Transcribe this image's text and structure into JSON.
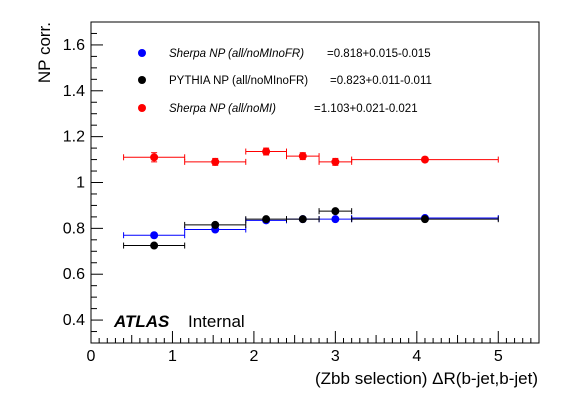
{
  "chart_data": {
    "type": "scatter",
    "xlabel": "(Zbb selection) ΔR(b-jet,b-jet)",
    "ylabel": "NP corr.",
    "xlim": [
      0,
      5.5
    ],
    "ylim": [
      0.3,
      1.7
    ],
    "x_ticks": [
      "0",
      "1",
      "2",
      "3",
      "4",
      "5"
    ],
    "y_ticks": [
      "0.4",
      "0.6",
      "0.8",
      "1",
      "1.2",
      "1.4",
      "1.6"
    ],
    "grid": false,
    "legend_placement": "top-left",
    "series": [
      {
        "name": "Sherpa NP (all/noMInoFR)",
        "legend_text": "=0.818+0.015-0.015",
        "italic": true,
        "color": "#0000ff",
        "points": [
          {
            "x": 0.775,
            "y": 0.77,
            "xlo": 0.4,
            "xhi": 1.15,
            "yerr": 0.008
          },
          {
            "x": 1.525,
            "y": 0.795,
            "xlo": 1.15,
            "xhi": 1.9,
            "yerr": 0.008
          },
          {
            "x": 2.15,
            "y": 0.835,
            "xlo": 1.9,
            "xhi": 2.4,
            "yerr": 0.008
          },
          {
            "x": 2.6,
            "y": 0.84,
            "xlo": 2.4,
            "xhi": 2.8,
            "yerr": 0.008
          },
          {
            "x": 3.0,
            "y": 0.84,
            "xlo": 2.8,
            "xhi": 3.2,
            "yerr": 0.008
          },
          {
            "x": 4.1,
            "y": 0.845,
            "xlo": 3.2,
            "xhi": 5.0,
            "yerr": 0.008
          }
        ]
      },
      {
        "name": "PYTHIA NP (all/noMInoFR)",
        "legend_text": "=0.823+0.011-0.011",
        "italic": false,
        "color": "#000000",
        "points": [
          {
            "x": 0.775,
            "y": 0.725,
            "xlo": 0.4,
            "xhi": 1.15,
            "yerr": 0.008
          },
          {
            "x": 1.525,
            "y": 0.815,
            "xlo": 1.15,
            "xhi": 1.9,
            "yerr": 0.008
          },
          {
            "x": 2.15,
            "y": 0.84,
            "xlo": 1.9,
            "xhi": 2.4,
            "yerr": 0.008
          },
          {
            "x": 2.6,
            "y": 0.84,
            "xlo": 2.4,
            "xhi": 2.8,
            "yerr": 0.008
          },
          {
            "x": 3.0,
            "y": 0.875,
            "xlo": 2.8,
            "xhi": 3.2,
            "yerr": 0.008
          },
          {
            "x": 4.1,
            "y": 0.84,
            "xlo": 3.2,
            "xhi": 5.0,
            "yerr": 0.008
          }
        ]
      },
      {
        "name": "Sherpa NP (all/noMI)",
        "legend_text": "=1.103+0.021-0.021",
        "italic": true,
        "color": "#ff0000",
        "points": [
          {
            "x": 0.775,
            "y": 1.11,
            "xlo": 0.4,
            "xhi": 1.15,
            "yerr": 0.02
          },
          {
            "x": 1.525,
            "y": 1.09,
            "xlo": 1.15,
            "xhi": 1.9,
            "yerr": 0.015
          },
          {
            "x": 2.15,
            "y": 1.135,
            "xlo": 1.9,
            "xhi": 2.4,
            "yerr": 0.015
          },
          {
            "x": 2.6,
            "y": 1.115,
            "xlo": 2.4,
            "xhi": 2.8,
            "yerr": 0.015
          },
          {
            "x": 3.0,
            "y": 1.09,
            "xlo": 2.8,
            "xhi": 3.2,
            "yerr": 0.015
          },
          {
            "x": 4.1,
            "y": 1.1,
            "xlo": 3.2,
            "xhi": 5.0,
            "yerr": 0.01
          }
        ]
      }
    ],
    "annotations": {
      "atlas": "ATLAS",
      "internal": "Internal"
    }
  }
}
